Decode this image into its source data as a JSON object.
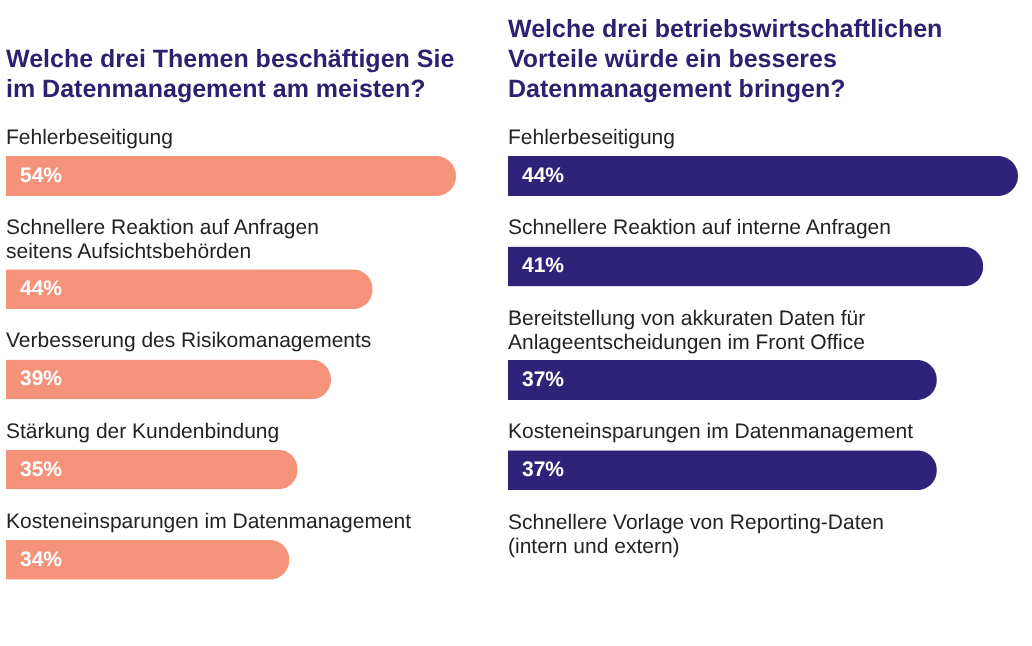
{
  "chart_data": [
    {
      "type": "bar",
      "orientation": "horizontal",
      "title": "Welche drei Themen beschäftigen Sie im Datenmanagement am meisten?",
      "categories": [
        "Fehlerbeseitigung",
        "Schnellere Reaktion auf Anfragen seitens Aufsichtsbehörden",
        "Verbesserung des Risikomanagements",
        "Stärkung der Kundenbindung",
        "Kosteneinsparungen im Datenmanagement"
      ],
      "values": [
        54,
        44,
        39,
        35,
        34
      ],
      "value_labels": [
        "54%",
        "44%",
        "39%",
        "35%",
        "34%"
      ],
      "color": "#f4937a"
    },
    {
      "type": "bar",
      "orientation": "horizontal",
      "title": "Welche drei betriebswirtschaftlichen Vorteile würde ein besseres Datenmanagement bringen?",
      "categories": [
        "Fehlerbeseitigung",
        "Schnellere Reaktion auf interne Anfragen",
        "Bereitstellung von akkuraten Daten für Anlageentscheidungen im Front Office",
        "Kosteneinsparungen im Datenmanagement",
        "Schnellere Vorlage von Reporting-Daten (intern und extern)"
      ],
      "values": [
        44,
        41,
        37,
        37,
        null
      ],
      "value_labels": [
        "44%",
        "41%",
        "37%",
        "37%",
        null
      ],
      "color": "#2e2378"
    }
  ]
}
